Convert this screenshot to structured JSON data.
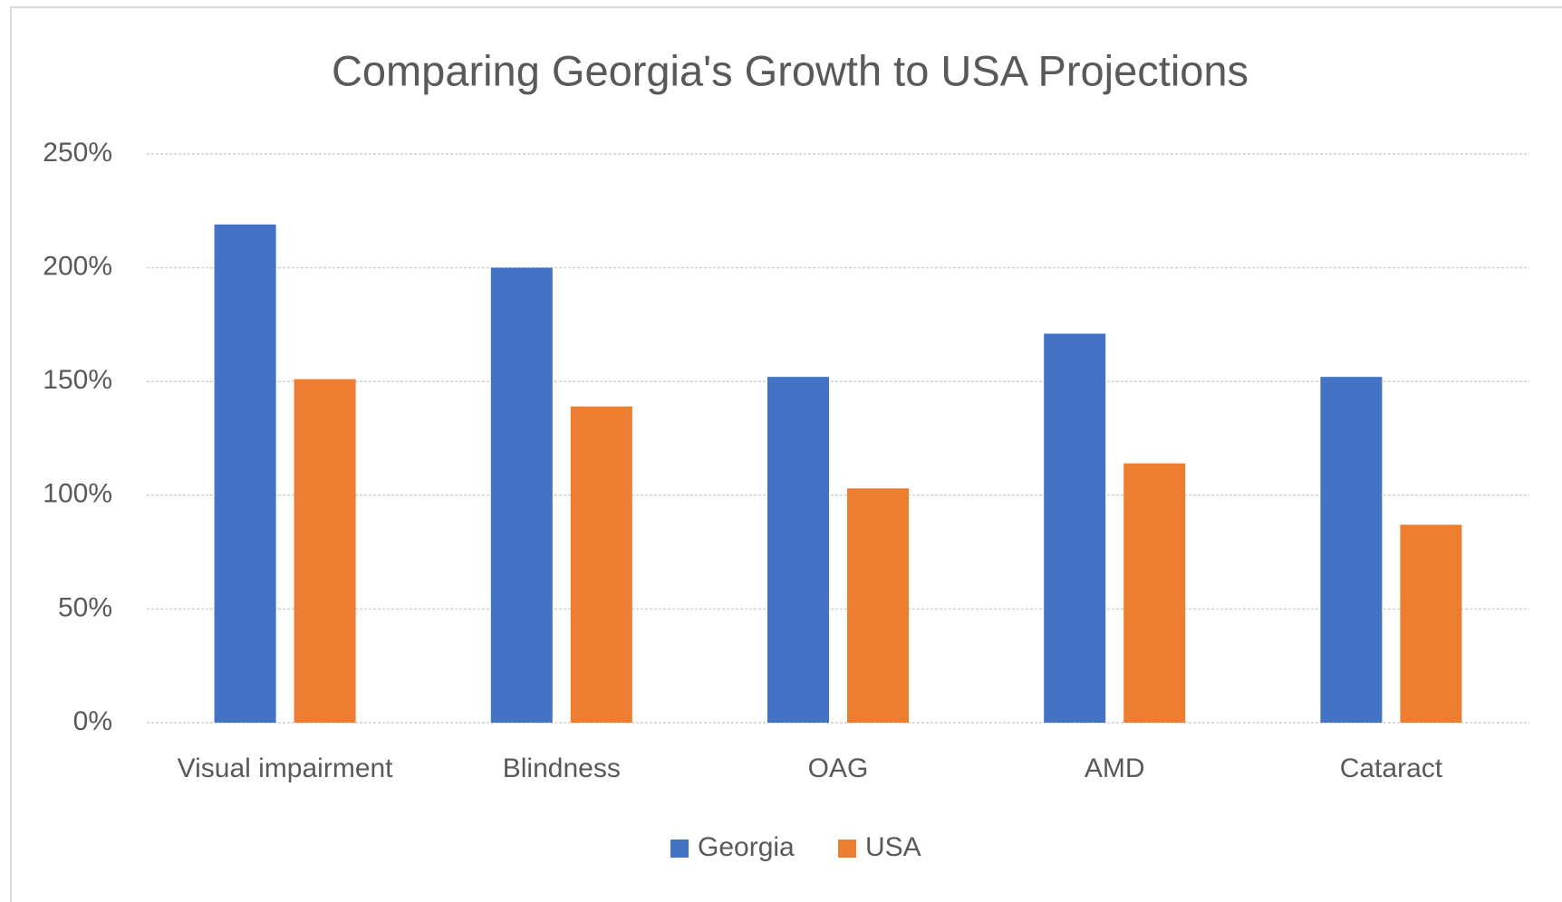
{
  "chart_data": {
    "type": "bar",
    "title": "Comparing Georgia's Growth to USA Projections",
    "categories": [
      "Visual impairment",
      "Blindness",
      "OAG",
      "AMD",
      "Cataract"
    ],
    "series": [
      {
        "name": "Georgia",
        "color": "#4472c4",
        "values": [
          219,
          200,
          152,
          171,
          152
        ]
      },
      {
        "name": "USA",
        "color": "#ed7d31",
        "values": [
          151,
          139,
          103,
          114,
          87
        ]
      }
    ],
    "ylim": [
      0,
      250
    ],
    "yticks": [
      {
        "value": 0,
        "label": "0%"
      },
      {
        "value": 50,
        "label": "50%"
      },
      {
        "value": 100,
        "label": "100%"
      },
      {
        "value": 150,
        "label": "150%"
      },
      {
        "value": 200,
        "label": "200%"
      },
      {
        "value": 250,
        "label": "250%"
      }
    ],
    "grid": true,
    "legend": "bottom"
  }
}
